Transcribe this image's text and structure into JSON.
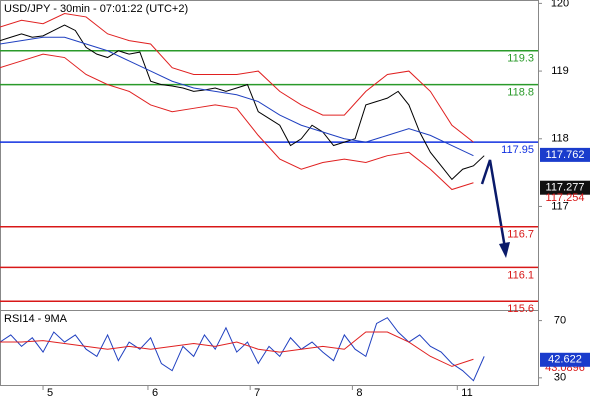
{
  "chart_data": [
    {
      "type": "line",
      "title": "USD/JPY - 30min - 07:01:22 (UTC+2)",
      "xlim": [
        0,
        100
      ],
      "ylim": [
        115.5,
        120.05
      ],
      "yticks": [
        120,
        119,
        118,
        117
      ],
      "series": [
        {
          "color": "#000000",
          "x": [
            0,
            2,
            4,
            6,
            8,
            10,
            12,
            14,
            16,
            18,
            20,
            22,
            24,
            26,
            28,
            30,
            32,
            34,
            36,
            38,
            40,
            42,
            44,
            46,
            48,
            50,
            52,
            54,
            56,
            58,
            60,
            62,
            64,
            66,
            68,
            70,
            72,
            74,
            76,
            78,
            80,
            82,
            84,
            86,
            88,
            90
          ],
          "values": [
            119.45,
            119.5,
            119.55,
            119.5,
            119.52,
            119.6,
            119.68,
            119.6,
            119.35,
            119.25,
            119.2,
            119.3,
            119.25,
            119.28,
            118.85,
            118.8,
            118.78,
            118.75,
            118.7,
            118.72,
            118.75,
            118.7,
            118.75,
            118.8,
            118.4,
            118.3,
            118.2,
            117.9,
            118.0,
            118.2,
            118.1,
            117.9,
            117.95,
            118.0,
            118.5,
            118.55,
            118.6,
            118.7,
            118.5,
            118.1,
            117.8,
            117.6,
            117.4,
            117.55,
            117.6,
            117.75
          ]
        },
        {
          "color": "#e02020",
          "x": [
            0,
            4,
            8,
            12,
            16,
            20,
            24,
            28,
            32,
            36,
            40,
            44,
            48,
            52,
            56,
            60,
            64,
            68,
            72,
            76,
            80,
            84,
            88
          ],
          "values": [
            119.65,
            119.75,
            119.7,
            119.85,
            119.8,
            119.55,
            119.45,
            119.4,
            119.05,
            118.95,
            118.95,
            118.95,
            119.0,
            118.7,
            118.5,
            118.35,
            118.35,
            118.7,
            118.95,
            119.0,
            118.7,
            118.2,
            117.95
          ]
        },
        {
          "color": "#e02020",
          "x": [
            0,
            4,
            8,
            12,
            16,
            20,
            24,
            28,
            32,
            36,
            40,
            44,
            48,
            52,
            56,
            60,
            64,
            68,
            72,
            76,
            80,
            84,
            88
          ],
          "values": [
            119.05,
            119.15,
            119.25,
            119.2,
            118.95,
            118.8,
            118.7,
            118.5,
            118.4,
            118.45,
            118.5,
            118.45,
            118.05,
            117.7,
            117.55,
            117.65,
            117.7,
            117.65,
            117.75,
            117.8,
            117.55,
            117.25,
            117.35
          ]
        },
        {
          "color": "#2040c0",
          "x": [
            0,
            4,
            8,
            12,
            16,
            20,
            24,
            28,
            32,
            36,
            40,
            44,
            48,
            52,
            56,
            60,
            64,
            68,
            72,
            76,
            80,
            84,
            88
          ],
          "values": [
            119.4,
            119.45,
            119.5,
            119.5,
            119.4,
            119.3,
            119.15,
            119.0,
            118.85,
            118.75,
            118.7,
            118.65,
            118.55,
            118.35,
            118.2,
            118.1,
            118.0,
            117.95,
            118.05,
            118.15,
            118.05,
            117.9,
            117.75
          ]
        }
      ],
      "levels": [
        {
          "value": 119.3,
          "color": "#2a9a2a"
        },
        {
          "value": 118.8,
          "color": "#2a9a2a"
        },
        {
          "value": 117.95,
          "color": "#1030e0"
        },
        {
          "value": 116.7,
          "color": "#d81818"
        },
        {
          "value": 116.1,
          "color": "#d81818"
        },
        {
          "value": 115.6,
          "color": "#d81818"
        }
      ],
      "price_tags": [
        {
          "value": 117.762,
          "style": "box",
          "color": "#1a3ccc"
        },
        {
          "value": 117.277,
          "style": "box",
          "color": "#111111"
        },
        {
          "value": 117.254,
          "style": "text",
          "color": "#d81818"
        }
      ]
    },
    {
      "type": "line",
      "title": "RSI14 - 9MA",
      "xlim": [
        0,
        100
      ],
      "ylim": [
        25,
        76
      ],
      "yticks": [
        70,
        30
      ],
      "xticks": [
        {
          "value": 8,
          "label": "5"
        },
        {
          "value": 27.5,
          "label": "6"
        },
        {
          "value": 46.5,
          "label": "7"
        },
        {
          "value": 65.5,
          "label": "8"
        },
        {
          "value": 85,
          "label": "11"
        }
      ],
      "series": [
        {
          "color": "#2040c0",
          "x": [
            0,
            2,
            4,
            6,
            8,
            10,
            12,
            14,
            16,
            18,
            20,
            22,
            24,
            26,
            28,
            30,
            32,
            34,
            36,
            38,
            40,
            42,
            44,
            46,
            48,
            50,
            52,
            54,
            56,
            58,
            60,
            62,
            64,
            66,
            68,
            70,
            72,
            74,
            76,
            78,
            80,
            82,
            84,
            86,
            88,
            90
          ],
          "values": [
            55,
            60,
            52,
            58,
            48,
            62,
            55,
            60,
            50,
            45,
            60,
            42,
            55,
            50,
            58,
            40,
            35,
            52,
            45,
            60,
            50,
            65,
            48,
            55,
            40,
            52,
            45,
            58,
            50,
            55,
            48,
            42,
            60,
            50,
            45,
            68,
            72,
            62,
            55,
            60,
            52,
            48,
            40,
            35,
            28,
            45
          ]
        },
        {
          "color": "#e02020",
          "x": [
            0,
            4,
            8,
            12,
            16,
            20,
            24,
            28,
            32,
            36,
            40,
            44,
            48,
            52,
            56,
            60,
            64,
            68,
            72,
            76,
            80,
            84,
            88
          ],
          "values": [
            55,
            55,
            56,
            54,
            52,
            50,
            52,
            50,
            52,
            54,
            52,
            55,
            50,
            48,
            50,
            52,
            50,
            62,
            62,
            55,
            45,
            38,
            43
          ]
        }
      ],
      "price_tags": [
        {
          "value": 43.0896,
          "style": "text",
          "color": "#d81818"
        },
        {
          "value": 42.622,
          "style": "box",
          "color": "#1a3ccc"
        }
      ]
    }
  ]
}
